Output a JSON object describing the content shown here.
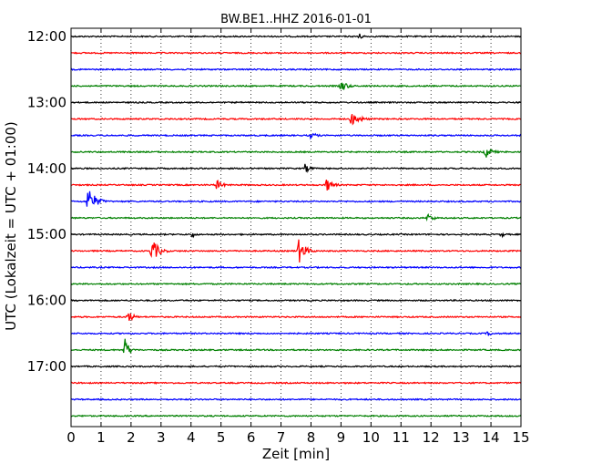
{
  "chart_data": {
    "type": "line",
    "title": "BW.BE1..HHZ 2016-01-01",
    "xlabel": "Zeit  [min]",
    "ylabel": "UTC (Lokalzeit = UTC + 01:00)",
    "xlim": [
      0,
      15
    ],
    "x_ticks": [
      "0",
      "1",
      "2",
      "3",
      "4",
      "5",
      "6",
      "7",
      "8",
      "9",
      "10",
      "11",
      "12",
      "13",
      "14",
      "15"
    ],
    "y_tick_labels": [
      "12:00",
      "13:00",
      "14:00",
      "15:00",
      "16:00",
      "17:00"
    ],
    "grid": true,
    "trace_colors": [
      "#000000",
      "#ff0000",
      "#0000ff",
      "#008000"
    ],
    "traces": [
      {
        "time": "12:00",
        "color": "#000000",
        "events": [
          [
            9.55,
            5,
            0.45
          ]
        ]
      },
      {
        "time": "12:15",
        "color": "#ff0000",
        "events": []
      },
      {
        "time": "12:30",
        "color": "#0000ff",
        "events": []
      },
      {
        "time": "12:45",
        "color": "#008000",
        "events": [
          [
            9.0,
            7,
            0.6
          ]
        ]
      },
      {
        "time": "13:00",
        "color": "#000000",
        "events": []
      },
      {
        "time": "13:15",
        "color": "#ff0000",
        "events": [
          [
            9.35,
            8,
            0.8
          ]
        ]
      },
      {
        "time": "13:30",
        "color": "#0000ff",
        "events": [
          [
            8.0,
            4,
            0.6
          ]
        ]
      },
      {
        "time": "13:45",
        "color": "#008000",
        "events": [
          [
            13.8,
            8,
            0.6
          ]
        ]
      },
      {
        "time": "14:00",
        "color": "#000000",
        "events": [
          [
            7.8,
            5,
            0.55
          ]
        ]
      },
      {
        "time": "14:15",
        "color": "#ff0000",
        "events": [
          [
            4.85,
            6,
            0.55
          ],
          [
            8.5,
            8,
            0.6
          ]
        ]
      },
      {
        "time": "14:30",
        "color": "#0000ff",
        "events": [
          [
            0.55,
            16,
            0.7
          ]
        ]
      },
      {
        "time": "14:45",
        "color": "#008000",
        "events": [
          [
            11.9,
            5,
            0.55
          ]
        ]
      },
      {
        "time": "15:00",
        "color": "#000000",
        "events": [
          [
            4.05,
            4,
            0.3
          ],
          [
            14.35,
            3,
            0.4
          ]
        ]
      },
      {
        "time": "15:15",
        "color": "#ff0000",
        "events": [
          [
            2.7,
            14,
            0.6
          ],
          [
            7.6,
            14,
            0.6
          ]
        ]
      },
      {
        "time": "15:30",
        "color": "#0000ff",
        "events": []
      },
      {
        "time": "15:45",
        "color": "#008000",
        "events": []
      },
      {
        "time": "16:00",
        "color": "#000000",
        "events": []
      },
      {
        "time": "16:15",
        "color": "#ff0000",
        "events": [
          [
            1.9,
            7,
            0.5
          ]
        ]
      },
      {
        "time": "16:30",
        "color": "#0000ff",
        "events": [
          [
            13.9,
            3,
            0.5
          ]
        ]
      },
      {
        "time": "16:45",
        "color": "#008000",
        "events": [
          [
            1.8,
            13,
            0.4
          ]
        ]
      },
      {
        "time": "17:00",
        "color": "#000000",
        "events": []
      },
      {
        "time": "17:15",
        "color": "#ff0000",
        "events": []
      },
      {
        "time": "17:30",
        "color": "#0000ff",
        "events": []
      },
      {
        "time": "17:45",
        "color": "#008000",
        "events": []
      }
    ]
  }
}
